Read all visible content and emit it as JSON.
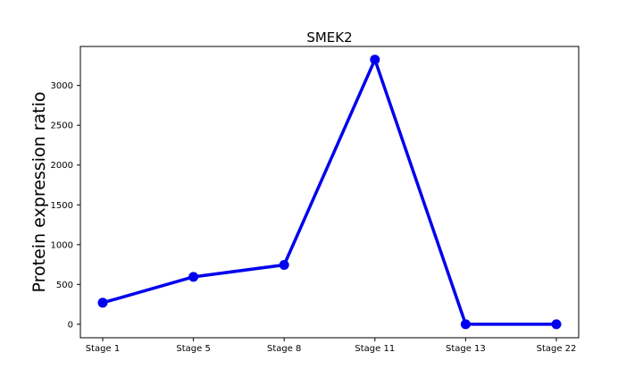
{
  "chart_data": {
    "type": "line",
    "title": "SMEK2",
    "xlabel": "",
    "ylabel": "Protein expression ratio",
    "categories": [
      "Stage 1",
      "Stage 5",
      "Stage 8",
      "Stage 11",
      "Stage 13",
      "Stage 22"
    ],
    "series": [
      {
        "values": [
          270,
          595,
          745,
          3325,
          0,
          0
        ],
        "color": "#0000ee"
      }
    ],
    "ylim": [
      -170,
      3490
    ],
    "yticks": [
      0,
      500,
      1000,
      1500,
      2000,
      2500,
      3000
    ],
    "grid": false,
    "marker": "circle"
  }
}
